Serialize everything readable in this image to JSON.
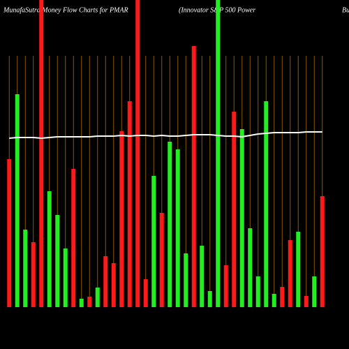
{
  "chart_data": {
    "type": "bar",
    "title": "MunafaSutra  Money Flow  Charts for PMAR",
    "subtitle": "(Innovator S&P 500  Power",
    "subtitle_continued": "Buf",
    "categories": [
      null,
      null,
      null,
      null,
      null,
      null,
      null,
      null,
      null,
      null,
      null,
      null,
      null,
      null,
      null,
      null,
      null,
      null,
      null,
      null,
      null,
      null,
      null,
      null,
      null,
      null,
      null,
      null,
      null,
      null,
      null,
      null,
      null,
      null,
      null,
      null,
      null,
      null,
      null,
      null
    ],
    "values": [
      212,
      305,
      111,
      93,
      440,
      166,
      132,
      84,
      198,
      12,
      15,
      28,
      73,
      63,
      252,
      295,
      440,
      40,
      188,
      135,
      237,
      226,
      77,
      374,
      88,
      23,
      440,
      60,
      280,
      255,
      113,
      44,
      295,
      19,
      29,
      96,
      108,
      16,
      44,
      159
    ],
    "colors": [
      "#ff1a1a",
      "#22ee22",
      "#22ee22",
      "#ff1a1a",
      "#ff1a1a",
      "#22ee22",
      "#22ee22",
      "#22ee22",
      "#ff1a1a",
      "#22ee22",
      "#ff1a1a",
      "#22ee22",
      "#ff1a1a",
      "#ff1a1a",
      "#ff1a1a",
      "#ff1a1a",
      "#ff1a1a",
      "#ff1a1a",
      "#22ee22",
      "#ff1a1a",
      "#22ee22",
      "#22ee22",
      "#22ee22",
      "#ff1a1a",
      "#22ee22",
      "#22ee22",
      "#22ee22",
      "#ff1a1a",
      "#ff1a1a",
      "#22ee22",
      "#22ee22",
      "#22ee22",
      "#22ee22",
      "#22ee22",
      "#ff1a1a",
      "#ff1a1a",
      "#22ee22",
      "#ff1a1a",
      "#22ee22",
      "#ff1a1a"
    ],
    "line": {
      "color": "#ffffff",
      "values": [
        242,
        243,
        243,
        243,
        242,
        243,
        244,
        244,
        244,
        244,
        244,
        245,
        245,
        245,
        246,
        245,
        246,
        246,
        245,
        246,
        245,
        245,
        246,
        247,
        247,
        247,
        246,
        245,
        245,
        244,
        246,
        248,
        249,
        250,
        250,
        250,
        250,
        251,
        251,
        251
      ]
    },
    "ylim": [
      0,
      440
    ],
    "grid": true,
    "grid_color": "#8a5a00"
  }
}
